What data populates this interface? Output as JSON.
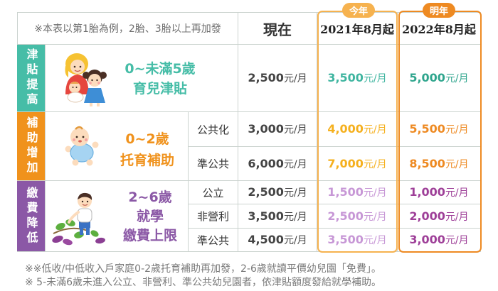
{
  "tabs": {
    "this_year": "今年",
    "next_year": "明年"
  },
  "header": {
    "note": "※本表以第1胎為例，2胎、3胎以上再加發",
    "current": "現在",
    "col_2021": "2021年8月起",
    "col_2022": "2022年8月起"
  },
  "groups": [
    {
      "category": "津貼提高",
      "program": [
        "0~未滿5歲",
        "育兒津貼"
      ],
      "illustration_icon": "family-illustration",
      "rows": [
        {
          "current": {
            "amount": "2,500",
            "unit": "元/月"
          },
          "y2021": {
            "amount": "3,500",
            "unit": "元/月"
          },
          "y2022": {
            "amount": "5,000",
            "unit": "元/月"
          }
        }
      ]
    },
    {
      "category": "補助增加",
      "program": [
        "0~2歲",
        "托育補助"
      ],
      "illustration_icon": "baby-illustration",
      "rows": [
        {
          "sub": "公共化",
          "current": {
            "amount": "3,000",
            "unit": "元/月"
          },
          "y2021": {
            "amount": "4,000",
            "unit": "元/月"
          },
          "y2022": {
            "amount": "5,500",
            "unit": "元/月"
          }
        },
        {
          "sub": "準公共",
          "current": {
            "amount": "6,000",
            "unit": "元/月"
          },
          "y2021": {
            "amount": "7,000",
            "unit": "元/月"
          },
          "y2022": {
            "amount": "8,500",
            "unit": "元/月"
          }
        }
      ]
    },
    {
      "category": "繳費降低",
      "program": [
        "2~6歲",
        "就學",
        "繳費上限"
      ],
      "illustration_icon": "child-harvest-illustration",
      "rows": [
        {
          "sub": "公立",
          "current": {
            "amount": "2,500",
            "unit": "元/月"
          },
          "y2021": {
            "amount": "1,500",
            "unit": "元/月"
          },
          "y2022": {
            "amount": "1,000",
            "unit": "元/月"
          }
        },
        {
          "sub": "非營利",
          "current": {
            "amount": "3,500",
            "unit": "元/月"
          },
          "y2021": {
            "amount": "2,500",
            "unit": "元/月"
          },
          "y2022": {
            "amount": "2,000",
            "unit": "元/月"
          }
        },
        {
          "sub": "準公共",
          "current": {
            "amount": "4,500",
            "unit": "元/月"
          },
          "y2021": {
            "amount": "3,500",
            "unit": "元/月"
          },
          "y2022": {
            "amount": "3,000",
            "unit": "元/月"
          }
        }
      ]
    }
  ],
  "footnotes": [
    "※※低收/中低收入戶家庭0-2歲托育補助再加發，2-6歲就讀平價幼兒園「免費」。",
    "※ 5-未滿6歲未進入公立、非營利、準公共幼兒園者，依津貼額度發給就學補助。"
  ],
  "colors": {
    "teal": "#46bda7",
    "orange": "#f0921c",
    "purple": "#8b58a6",
    "tab_this_year": "#f6b24f",
    "tab_next_year": "#ee8a22",
    "g1_2021": "#3fb5a0",
    "g1_2022": "#2fa58d",
    "g2_2021": "#f5b01e",
    "g2_2022": "#ee8a22",
    "g3_2021": "#c797d6",
    "g3_2022": "#9e3f98"
  }
}
